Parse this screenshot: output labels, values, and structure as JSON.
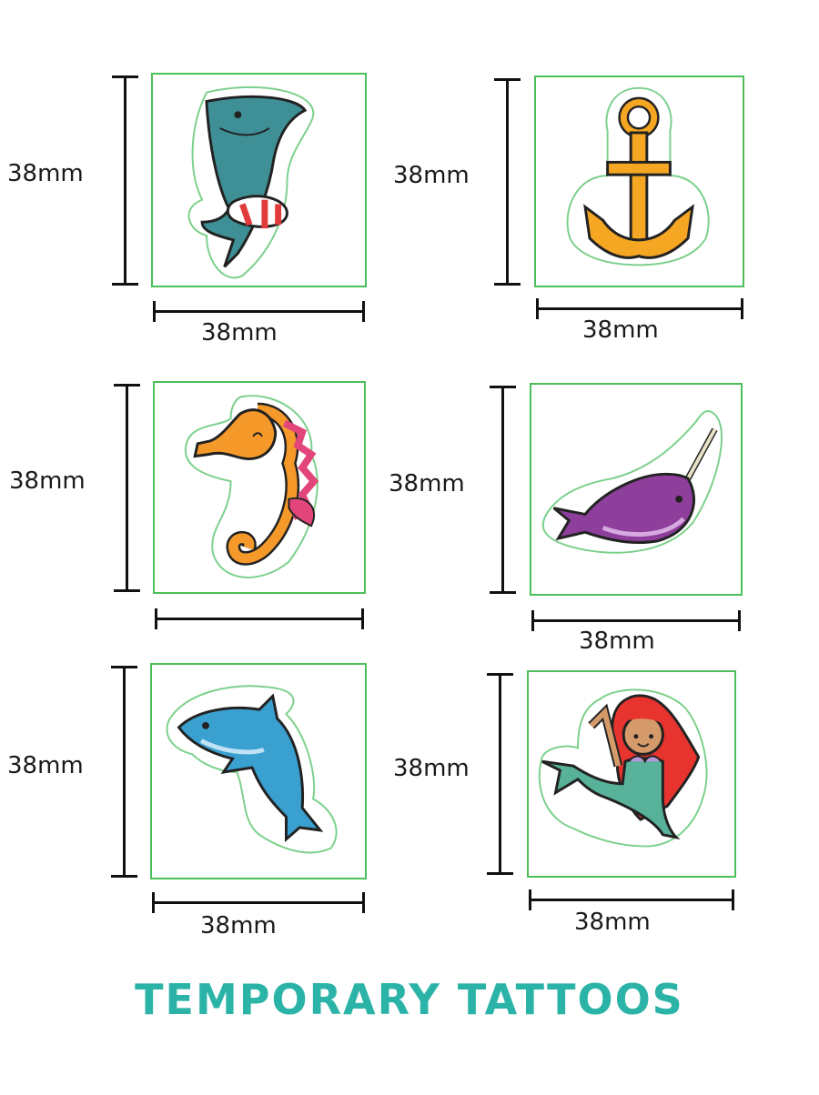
{
  "tattoos": [
    {
      "name": "shark",
      "height_label": "38mm",
      "width_label": "38mm"
    },
    {
      "name": "anchor",
      "height_label": "38mm",
      "width_label": "38mm"
    },
    {
      "name": "seahorse",
      "height_label": "38mm",
      "width_label": ""
    },
    {
      "name": "narwhal",
      "height_label": "38mm",
      "width_label": "38mm"
    },
    {
      "name": "dolphin",
      "height_label": "38mm",
      "width_label": "38mm"
    },
    {
      "name": "mermaid",
      "height_label": "38mm",
      "width_label": "38mm"
    }
  ],
  "title": "TEMPORARY TATTOOS",
  "colors": {
    "frame": "#4cbf5a",
    "title": "#2bb3a8",
    "shark": "#3f8f97",
    "anchor": "#f5a623",
    "seahorse": "#f59a2a",
    "narwhal": "#8e3f9c",
    "dolphin": "#3aa0d0",
    "mermaid_hair": "#e8342e",
    "mermaid_tail": "#58b29a"
  }
}
